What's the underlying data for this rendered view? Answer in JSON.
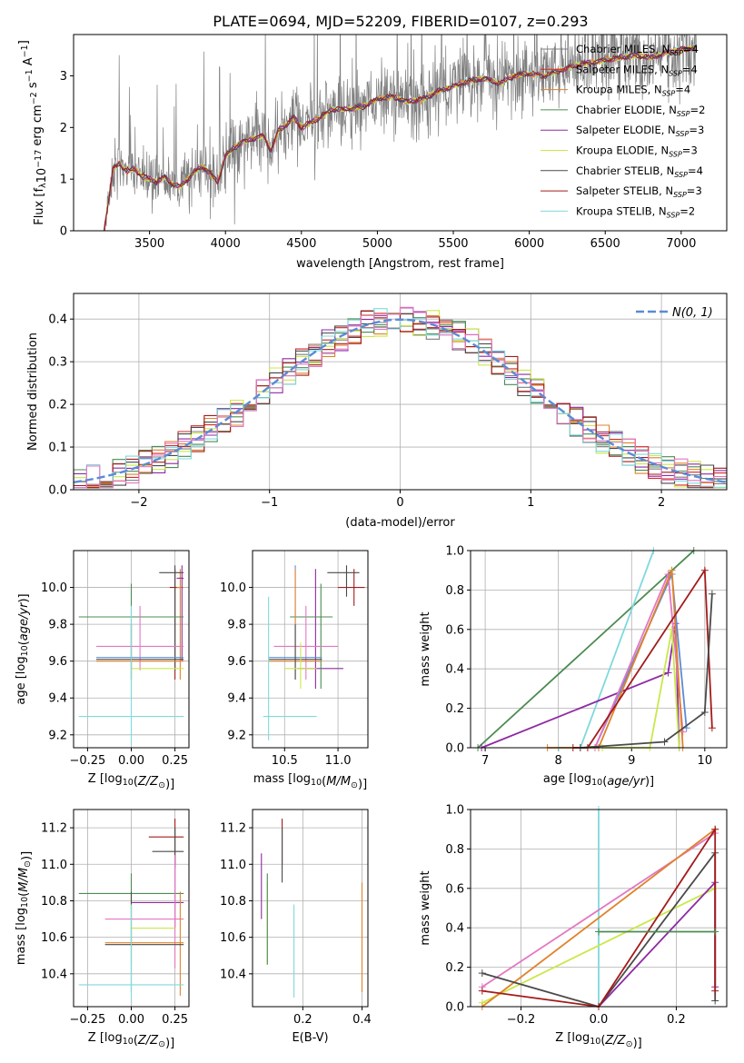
{
  "title": "PLATE=0694, MJD=52209, FIBERID=0107, z=0.293",
  "colors": {
    "Chabrier MILES": "#7f7f7f",
    "Salpeter MILES": "#d62728",
    "Kroupa MILES": "#e0822b",
    "Chabrier ELODIE": "#4c8b52",
    "Salpeter ELODIE": "#8e2aa3",
    "Kroupa ELODIE": "#c9e84a",
    "Chabrier STELIB": "#4a4a4a",
    "Salpeter STELIB": "#a31b1b",
    "Kroupa STELIB": "#7fd9dd",
    "pink": "#e377c2",
    "blue": "#5b8bd6",
    "normal": "#5b8bd6"
  },
  "legend": [
    {
      "name": "Chabrier MILES",
      "nssp": "4"
    },
    {
      "name": "Salpeter MILES",
      "nssp": "4"
    },
    {
      "name": "Kroupa MILES",
      "nssp": "4"
    },
    {
      "name": "Chabrier ELODIE",
      "nssp": "2"
    },
    {
      "name": "Salpeter ELODIE",
      "nssp": "3"
    },
    {
      "name": "Kroupa ELODIE",
      "nssp": "3"
    },
    {
      "name": "Chabrier STELIB",
      "nssp": "4"
    },
    {
      "name": "Salpeter STELIB",
      "nssp": "3"
    },
    {
      "name": "Kroupa STELIB",
      "nssp": "2"
    }
  ],
  "legend_prefix": "N",
  "legend_sub": "SSP",
  "chart_data": [
    {
      "id": "spectrum",
      "type": "line",
      "xlabel": "wavelength [Angstrom, rest frame]",
      "ylabel": "Flux [f",
      "ylabel_parts": [
        "Flux [f",
        "λ",
        "10",
        "−17",
        " erg cm",
        "−2",
        " s",
        "−1",
        " A",
        "−1",
        "]"
      ],
      "xlim": [
        3000,
        7300
      ],
      "ylim": [
        0,
        3.8
      ],
      "xticks": [
        3500,
        4000,
        4500,
        5000,
        5500,
        6000,
        6500,
        7000
      ],
      "yticks": [
        0,
        1,
        2,
        3
      ],
      "model": {
        "x": [
          3200,
          3260,
          3300,
          3350,
          3400,
          3450,
          3500,
          3550,
          3600,
          3650,
          3700,
          3750,
          3800,
          3850,
          3900,
          3950,
          4000,
          4050,
          4100,
          4150,
          4200,
          4250,
          4300,
          4350,
          4400,
          4450,
          4500,
          4600,
          4700,
          4800,
          4900,
          5000,
          5100,
          5200,
          5300,
          5400,
          5500,
          5600,
          5700,
          5800,
          5900,
          6000,
          6100,
          6200,
          6300,
          6400,
          6500,
          6600,
          6700,
          6800,
          6900,
          7000,
          7100
        ],
        "y": [
          0.0,
          1.2,
          1.3,
          1.15,
          1.2,
          1.05,
          1.0,
          0.95,
          1.05,
          0.9,
          0.85,
          1.0,
          1.15,
          1.25,
          1.1,
          0.95,
          1.45,
          1.6,
          1.7,
          1.75,
          1.8,
          1.85,
          1.55,
          1.95,
          2.05,
          2.2,
          2.0,
          2.15,
          2.35,
          2.35,
          2.4,
          2.55,
          2.6,
          2.5,
          2.55,
          2.7,
          2.8,
          2.9,
          2.95,
          2.85,
          3.0,
          3.05,
          3.0,
          3.1,
          3.2,
          3.25,
          3.3,
          3.35,
          3.4,
          3.35,
          3.45,
          3.5,
          3.55
        ]
      }
    },
    {
      "id": "residuals",
      "type": "histogram",
      "xlabel": "(data-model)/error",
      "ylabel": "Normed distribution",
      "xlim": [
        -2.5,
        2.5
      ],
      "ylim": [
        0,
        0.46
      ],
      "xticks": [
        -2,
        -1,
        0,
        1,
        2
      ],
      "yticks": [
        0.0,
        0.1,
        0.2,
        0.3,
        0.4
      ],
      "normal_label": "N(0, 1)"
    },
    {
      "id": "age-vs-Z",
      "type": "errorbar",
      "xlabel": "Z [log10(Z/Z⊙)]",
      "ylabel": "age [log10(age/yr)]",
      "xlim": [
        -0.33,
        0.33
      ],
      "ylim": [
        9.13,
        10.2
      ],
      "xticks": [
        -0.25,
        0.0,
        0.25
      ],
      "yticks": [
        9.2,
        9.4,
        9.6,
        9.8,
        10.0
      ],
      "points": [
        {
          "c": "Salpeter STELIB",
          "x": 0.25,
          "y": 10.0,
          "xe": [
            0.22,
            0.28
          ],
          "ye": [
            9.5,
            10.1
          ]
        },
        {
          "c": "Kroupa MILES",
          "x": 0.28,
          "y": 10.0,
          "xe": [
            0.26,
            0.3
          ],
          "ye": [
            9.5,
            10.1
          ]
        },
        {
          "c": "Chabrier STELIB",
          "x": 0.25,
          "y": 10.08,
          "xe": [
            0.16,
            0.3
          ],
          "ye": [
            9.55,
            10.12
          ]
        },
        {
          "c": "Salpeter ELODIE",
          "x": 0.29,
          "y": 10.05,
          "xe": [
            0.26,
            0.3
          ],
          "ye": [
            9.6,
            10.12
          ]
        },
        {
          "c": "Chabrier ELODIE",
          "x": 0.0,
          "y": 9.84,
          "xe": [
            -0.3,
            0.3
          ],
          "ye": [
            9.56,
            10.02
          ]
        },
        {
          "c": "pink",
          "x": 0.05,
          "y": 9.68,
          "xe": [
            -0.2,
            0.3
          ],
          "ye": [
            9.55,
            9.9
          ]
        },
        {
          "c": "blue",
          "x": 0.0,
          "y": 9.62,
          "xe": [
            -0.2,
            0.3
          ],
          "ye": [
            9.5,
            9.8
          ]
        },
        {
          "c": "Chabrier STELIB",
          "x": 0.0,
          "y": 9.61,
          "xe": [
            -0.2,
            0.3
          ],
          "ye": [
            9.5,
            9.8
          ]
        },
        {
          "c": "Kroupa MILES",
          "x": 0.0,
          "y": 9.6,
          "xe": [
            -0.2,
            0.3
          ],
          "ye": [
            9.5,
            9.8
          ]
        },
        {
          "c": "Kroupa ELODIE",
          "x": 0.0,
          "y": 9.56,
          "xe": [
            0.0,
            0.3
          ],
          "ye": [
            9.4,
            9.8
          ]
        },
        {
          "c": "Kroupa STELIB",
          "x": 0.0,
          "y": 9.3,
          "xe": [
            -0.3,
            0.3
          ],
          "ye": [
            9.15,
            9.9
          ]
        }
      ]
    },
    {
      "id": "age-vs-mass",
      "type": "errorbar",
      "xlabel": "mass [log10(M/M⊙)]",
      "ylabel": "",
      "xlim": [
        10.2,
        11.28
      ],
      "ylim": [
        9.13,
        10.2
      ],
      "xticks": [
        10.5,
        11.0
      ],
      "yticks": [
        9.2,
        9.4,
        9.6,
        9.8,
        10.0
      ],
      "points": [
        {
          "c": "Salpeter STELIB",
          "x": 11.15,
          "y": 10.0,
          "xe": [
            11.0,
            11.25
          ],
          "ye": [
            9.9,
            10.1
          ]
        },
        {
          "c": "Chabrier STELIB",
          "x": 11.08,
          "y": 10.08,
          "xe": [
            10.9,
            11.2
          ],
          "ye": [
            9.95,
            10.12
          ]
        },
        {
          "c": "Salpeter ELODIE",
          "x": 10.79,
          "y": 9.56,
          "xe": [
            10.62,
            11.05
          ],
          "ye": [
            9.45,
            10.1
          ]
        },
        {
          "c": "Chabrier ELODIE",
          "x": 10.84,
          "y": 9.84,
          "xe": [
            10.55,
            10.95
          ],
          "ye": [
            9.45,
            10.02
          ]
        },
        {
          "c": "pink",
          "x": 10.7,
          "y": 9.68,
          "xe": [
            10.4,
            11.0
          ],
          "ye": [
            9.5,
            9.9
          ]
        },
        {
          "c": "blue",
          "x": 10.6,
          "y": 9.62,
          "xe": [
            10.35,
            10.85
          ],
          "ye": [
            9.5,
            10.12
          ]
        },
        {
          "c": "Kroupa MILES",
          "x": 10.6,
          "y": 9.6,
          "xe": [
            10.35,
            10.85
          ],
          "ye": [
            9.5,
            10.1
          ]
        },
        {
          "c": "Chabrier STELIB",
          "x": 10.6,
          "y": 9.61,
          "xe": [
            10.35,
            10.85
          ],
          "ye": [
            9.5,
            9.8
          ]
        },
        {
          "c": "Kroupa ELODIE",
          "x": 10.65,
          "y": 9.56,
          "xe": [
            10.5,
            10.8
          ],
          "ye": [
            9.45,
            9.7
          ]
        },
        {
          "c": "Kroupa STELIB",
          "x": 10.35,
          "y": 9.3,
          "xe": [
            10.3,
            10.8
          ],
          "ye": [
            9.17,
            9.95
          ]
        }
      ]
    },
    {
      "id": "weight-vs-age",
      "type": "line",
      "xlabel": "age [log10(age/yr)]",
      "ylabel": "mass weight",
      "xlim": [
        6.8,
        10.3
      ],
      "ylim": [
        0,
        1.0
      ],
      "xticks": [
        7,
        8,
        9,
        10
      ],
      "yticks": [
        0.0,
        0.2,
        0.4,
        0.6,
        0.8,
        1.0
      ],
      "series": [
        {
          "c": "Chabrier ELODIE",
          "x": [
            6.9,
            9.85
          ],
          "y": [
            0.0,
            1.0
          ]
        },
        {
          "c": "Kroupa STELIB",
          "x": [
            8.0,
            8.3,
            9.3
          ],
          "y": [
            0.0,
            0.0,
            1.0
          ]
        },
        {
          "c": "Salpeter ELODIE",
          "x": [
            6.95,
            9.5,
            9.6,
            9.65
          ],
          "y": [
            0.0,
            0.38,
            0.63,
            0.0
          ]
        },
        {
          "c": "Kroupa ELODIE",
          "x": [
            8.6,
            9.25,
            9.55,
            9.65
          ],
          "y": [
            0.0,
            0.0,
            0.6,
            0.0
          ]
        },
        {
          "c": "blue",
          "x": [
            8.5,
            9.55,
            9.75
          ],
          "y": [
            0.0,
            0.88,
            0.1
          ]
        },
        {
          "c": "pink",
          "x": [
            8.5,
            9.5,
            9.7
          ],
          "y": [
            0.0,
            0.88,
            0.08
          ]
        },
        {
          "c": "Kroupa MILES",
          "x": [
            7.85,
            8.55,
            9.55,
            9.7
          ],
          "y": [
            0.0,
            0.0,
            0.9,
            0.0
          ]
        },
        {
          "c": "Salpeter STELIB",
          "x": [
            8.2,
            8.4,
            10.0,
            10.1
          ],
          "y": [
            0.0,
            0.0,
            0.9,
            0.1
          ]
        },
        {
          "c": "Chabrier STELIB",
          "x": [
            8.3,
            9.45,
            10.0,
            10.1
          ],
          "y": [
            0.0,
            0.03,
            0.18,
            0.78
          ]
        }
      ]
    },
    {
      "id": "mass-vs-Z",
      "type": "errorbar",
      "xlabel": "Z [log10(Z/Z⊙)]",
      "ylabel": "mass [log10(M/M⊙)]",
      "xlim": [
        -0.33,
        0.33
      ],
      "ylim": [
        10.22,
        11.3
      ],
      "xticks": [
        -0.25,
        0.0,
        0.25
      ],
      "yticks": [
        10.4,
        10.6,
        10.8,
        11.0,
        11.2
      ],
      "points": [
        {
          "c": "Salpeter STELIB",
          "x": 0.25,
          "y": 11.15,
          "xe": [
            0.1,
            0.3
          ],
          "ye": [
            11.0,
            11.25
          ]
        },
        {
          "c": "Chabrier STELIB",
          "x": 0.25,
          "y": 11.07,
          "xe": [
            0.12,
            0.3
          ],
          "ye": [
            10.98,
            11.2
          ]
        },
        {
          "c": "Salpeter ELODIE",
          "x": 0.25,
          "y": 10.79,
          "xe": [
            0.0,
            0.3
          ],
          "ye": [
            10.65,
            11.05
          ]
        },
        {
          "c": "Chabrier ELODIE",
          "x": 0.0,
          "y": 10.84,
          "xe": [
            -0.3,
            0.3
          ],
          "ye": [
            10.55,
            10.95
          ]
        },
        {
          "c": "pink",
          "x": 0.25,
          "y": 10.7,
          "xe": [
            -0.15,
            0.3
          ],
          "ye": [
            10.43,
            11.05
          ]
        },
        {
          "c": "Kroupa ELODIE",
          "x": 0.0,
          "y": 10.65,
          "xe": [
            0.0,
            0.25
          ],
          "ye": [
            10.45,
            10.85
          ]
        },
        {
          "c": "Kroupa MILES",
          "x": 0.28,
          "y": 10.57,
          "xe": [
            -0.15,
            0.3
          ],
          "ye": [
            10.28,
            10.85
          ]
        },
        {
          "c": "Chabrier STELIB",
          "x": 0.0,
          "y": 10.56,
          "xe": [
            -0.15,
            0.3
          ],
          "ye": [
            10.3,
            10.85
          ]
        },
        {
          "c": "Kroupa STELIB",
          "x": 0.0,
          "y": 10.34,
          "xe": [
            -0.3,
            0.3
          ],
          "ye": [
            10.25,
            10.78
          ]
        }
      ]
    },
    {
      "id": "mass-vs-EBV",
      "type": "errorbar",
      "xlabel": "E(B-V)",
      "ylabel": "",
      "xlim": [
        0.03,
        0.42
      ],
      "ylim": [
        10.22,
        11.3
      ],
      "xticks": [
        0.2,
        0.4
      ],
      "yticks": [
        10.4,
        10.6,
        10.8,
        11.0,
        11.2
      ],
      "points": [
        {
          "c": "Salpeter STELIB",
          "x": 0.13,
          "y": 11.15,
          "xe": [
            0.13,
            0.13
          ],
          "ye": [
            11.0,
            11.25
          ]
        },
        {
          "c": "Chabrier STELIB",
          "x": 0.13,
          "y": 11.07,
          "xe": [
            0.13,
            0.13
          ],
          "ye": [
            10.9,
            11.2
          ]
        },
        {
          "c": "Salpeter ELODIE",
          "x": 0.06,
          "y": 10.79,
          "xe": [
            0.06,
            0.06
          ],
          "ye": [
            10.7,
            11.06
          ]
        },
        {
          "c": "Kroupa ELODIE",
          "x": 0.08,
          "y": 10.65,
          "xe": [
            0.08,
            0.08
          ],
          "ye": [
            10.45,
            10.9
          ]
        },
        {
          "c": "Chabrier ELODIE",
          "x": 0.08,
          "y": 10.84,
          "xe": [
            0.08,
            0.08
          ],
          "ye": [
            10.45,
            10.95
          ]
        },
        {
          "c": "Kroupa STELIB",
          "x": 0.17,
          "y": 10.34,
          "xe": [
            0.17,
            0.17
          ],
          "ye": [
            10.27,
            10.78
          ]
        },
        {
          "c": "Kroupa MILES",
          "x": 0.4,
          "y": 10.57,
          "xe": [
            0.4,
            0.4
          ],
          "ye": [
            10.3,
            10.9
          ]
        }
      ]
    },
    {
      "id": "weight-vs-Z",
      "type": "line",
      "xlabel": "Z [log10(Z/Z⊙)]",
      "ylabel": "mass weight",
      "xlim": [
        -0.33,
        0.33
      ],
      "ylim": [
        0,
        1.0
      ],
      "xticks": [
        -0.2,
        0.0,
        0.2
      ],
      "yticks": [
        0.0,
        0.2,
        0.4,
        0.6,
        0.8,
        1.0
      ],
      "series": [
        {
          "c": "Kroupa STELIB",
          "x": [
            0.0,
            0.0,
            0.0
          ],
          "y": [
            0.0,
            1.0,
            0.0
          ]
        },
        {
          "c": "Kroupa ELODIE",
          "x": [
            -0.3,
            0.3
          ],
          "y": [
            0.02,
            0.6
          ]
        },
        {
          "c": "pink",
          "x": [
            -0.3,
            0.3
          ],
          "y": [
            0.1,
            0.88
          ]
        },
        {
          "c": "Kroupa MILES",
          "x": [
            -0.3,
            0.3
          ],
          "y": [
            0.0,
            0.9
          ]
        },
        {
          "c": "Salpeter ELODIE",
          "x": [
            0.0,
            0.3,
            0.3
          ],
          "y": [
            0.0,
            0.63,
            0.1
          ]
        },
        {
          "c": "Chabrier STELIB",
          "x": [
            -0.3,
            0.0,
            0.3,
            0.3
          ],
          "y": [
            0.17,
            0.0,
            0.78,
            0.03
          ]
        },
        {
          "c": "Salpeter STELIB",
          "x": [
            -0.3,
            0.0,
            0.3,
            0.3
          ],
          "y": [
            0.08,
            0.0,
            0.9,
            0.08
          ]
        },
        {
          "c": "Chabrier ELODIE",
          "x": [
            0.0,
            0.3
          ],
          "y": [
            0.38,
            0.38
          ]
        }
      ]
    }
  ]
}
